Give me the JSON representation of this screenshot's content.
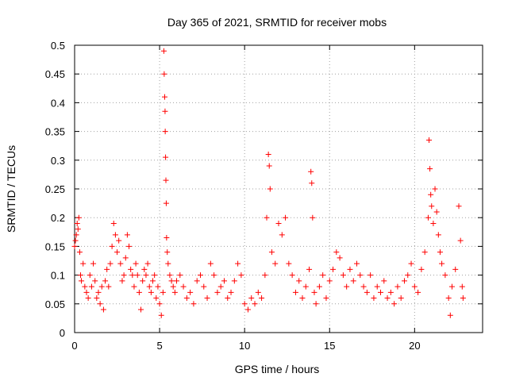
{
  "chart_data": {
    "type": "scatter",
    "title": "Day 365 of 2021, SRMTID for receiver mobs",
    "xlabel": "GPS time / hours",
    "ylabel": "SRMTID / TECUs",
    "xlim": [
      0,
      24
    ],
    "ylim": [
      0,
      0.5
    ],
    "xticks": [
      0,
      5,
      10,
      15,
      20
    ],
    "yticks": [
      0,
      0.05,
      0.1,
      0.15,
      0.2,
      0.25,
      0.3,
      0.35,
      0.4,
      0.45,
      0.5
    ],
    "xtick_labels": [
      "0",
      "5",
      "10",
      "15",
      "20"
    ],
    "ytick_labels": [
      "0",
      "0.05",
      "0.1",
      "0.15",
      "0.2",
      "0.25",
      "0.3",
      "0.35",
      "0.4",
      "0.45",
      "0.5"
    ],
    "grid": true,
    "marker": "+",
    "color": "#ff0000",
    "series": [
      {
        "name": "SRMTID",
        "points": [
          [
            0.0,
            0.15
          ],
          [
            0.05,
            0.16
          ],
          [
            0.1,
            0.17
          ],
          [
            0.15,
            0.19
          ],
          [
            0.2,
            0.18
          ],
          [
            0.25,
            0.2
          ],
          [
            0.3,
            0.14
          ],
          [
            0.35,
            0.1
          ],
          [
            0.4,
            0.09
          ],
          [
            0.5,
            0.12
          ],
          [
            0.6,
            0.08
          ],
          [
            0.7,
            0.07
          ],
          [
            0.8,
            0.06
          ],
          [
            0.9,
            0.1
          ],
          [
            1.0,
            0.08
          ],
          [
            1.1,
            0.12
          ],
          [
            1.2,
            0.09
          ],
          [
            1.3,
            0.06
          ],
          [
            1.4,
            0.07
          ],
          [
            1.5,
            0.05
          ],
          [
            1.6,
            0.08
          ],
          [
            1.7,
            0.04
          ],
          [
            1.8,
            0.09
          ],
          [
            1.9,
            0.11
          ],
          [
            2.0,
            0.08
          ],
          [
            2.1,
            0.12
          ],
          [
            2.2,
            0.15
          ],
          [
            2.3,
            0.19
          ],
          [
            2.4,
            0.17
          ],
          [
            2.5,
            0.14
          ],
          [
            2.6,
            0.16
          ],
          [
            2.7,
            0.12
          ],
          [
            2.8,
            0.09
          ],
          [
            2.9,
            0.1
          ],
          [
            3.0,
            0.13
          ],
          [
            3.1,
            0.17
          ],
          [
            3.2,
            0.15
          ],
          [
            3.3,
            0.11
          ],
          [
            3.4,
            0.1
          ],
          [
            3.5,
            0.08
          ],
          [
            3.6,
            0.12
          ],
          [
            3.7,
            0.1
          ],
          [
            3.8,
            0.07
          ],
          [
            3.9,
            0.04
          ],
          [
            4.0,
            0.09
          ],
          [
            4.1,
            0.11
          ],
          [
            4.2,
            0.1
          ],
          [
            4.3,
            0.12
          ],
          [
            4.4,
            0.08
          ],
          [
            4.5,
            0.07
          ],
          [
            4.6,
            0.09
          ],
          [
            4.7,
            0.1
          ],
          [
            4.8,
            0.06
          ],
          [
            4.9,
            0.08
          ],
          [
            5.0,
            0.05
          ],
          [
            5.1,
            0.03
          ],
          [
            5.2,
            0.07
          ],
          [
            5.25,
            0.49
          ],
          [
            5.27,
            0.45
          ],
          [
            5.3,
            0.41
          ],
          [
            5.32,
            0.385
          ],
          [
            5.33,
            0.35
          ],
          [
            5.35,
            0.305
          ],
          [
            5.37,
            0.265
          ],
          [
            5.39,
            0.225
          ],
          [
            5.41,
            0.165
          ],
          [
            5.45,
            0.14
          ],
          [
            5.5,
            0.12
          ],
          [
            5.6,
            0.1
          ],
          [
            5.7,
            0.09
          ],
          [
            5.8,
            0.08
          ],
          [
            5.9,
            0.07
          ],
          [
            6.0,
            0.09
          ],
          [
            6.2,
            0.1
          ],
          [
            6.4,
            0.08
          ],
          [
            6.6,
            0.06
          ],
          [
            6.8,
            0.07
          ],
          [
            7.0,
            0.05
          ],
          [
            7.2,
            0.09
          ],
          [
            7.4,
            0.1
          ],
          [
            7.6,
            0.08
          ],
          [
            7.8,
            0.06
          ],
          [
            8.0,
            0.12
          ],
          [
            8.2,
            0.1
          ],
          [
            8.4,
            0.07
          ],
          [
            8.6,
            0.08
          ],
          [
            8.8,
            0.09
          ],
          [
            9.0,
            0.06
          ],
          [
            9.2,
            0.07
          ],
          [
            9.4,
            0.09
          ],
          [
            9.6,
            0.12
          ],
          [
            9.8,
            0.1
          ],
          [
            10.0,
            0.05
          ],
          [
            10.2,
            0.04
          ],
          [
            10.4,
            0.06
          ],
          [
            10.6,
            0.05
          ],
          [
            10.8,
            0.07
          ],
          [
            11.0,
            0.06
          ],
          [
            11.2,
            0.1
          ],
          [
            11.3,
            0.2
          ],
          [
            11.4,
            0.31
          ],
          [
            11.45,
            0.29
          ],
          [
            11.5,
            0.25
          ],
          [
            11.6,
            0.14
          ],
          [
            11.8,
            0.12
          ],
          [
            12.0,
            0.19
          ],
          [
            12.2,
            0.17
          ],
          [
            12.4,
            0.2
          ],
          [
            12.6,
            0.12
          ],
          [
            12.8,
            0.1
          ],
          [
            13.0,
            0.07
          ],
          [
            13.2,
            0.09
          ],
          [
            13.4,
            0.06
          ],
          [
            13.6,
            0.08
          ],
          [
            13.8,
            0.11
          ],
          [
            13.9,
            0.28
          ],
          [
            13.95,
            0.26
          ],
          [
            14.0,
            0.2
          ],
          [
            14.1,
            0.07
          ],
          [
            14.2,
            0.05
          ],
          [
            14.4,
            0.08
          ],
          [
            14.6,
            0.1
          ],
          [
            14.8,
            0.06
          ],
          [
            15.0,
            0.09
          ],
          [
            15.2,
            0.11
          ],
          [
            15.4,
            0.14
          ],
          [
            15.6,
            0.13
          ],
          [
            15.8,
            0.1
          ],
          [
            16.0,
            0.08
          ],
          [
            16.2,
            0.11
          ],
          [
            16.4,
            0.09
          ],
          [
            16.6,
            0.12
          ],
          [
            16.8,
            0.1
          ],
          [
            17.0,
            0.08
          ],
          [
            17.2,
            0.07
          ],
          [
            17.4,
            0.1
          ],
          [
            17.6,
            0.06
          ],
          [
            17.8,
            0.08
          ],
          [
            18.0,
            0.07
          ],
          [
            18.2,
            0.09
          ],
          [
            18.4,
            0.06
          ],
          [
            18.6,
            0.07
          ],
          [
            18.8,
            0.05
          ],
          [
            19.0,
            0.08
          ],
          [
            19.2,
            0.06
          ],
          [
            19.4,
            0.09
          ],
          [
            19.6,
            0.1
          ],
          [
            19.8,
            0.12
          ],
          [
            20.0,
            0.08
          ],
          [
            20.2,
            0.07
          ],
          [
            20.4,
            0.11
          ],
          [
            20.6,
            0.14
          ],
          [
            20.8,
            0.2
          ],
          [
            20.85,
            0.335
          ],
          [
            20.9,
            0.285
          ],
          [
            20.95,
            0.24
          ],
          [
            21.0,
            0.22
          ],
          [
            21.1,
            0.19
          ],
          [
            21.2,
            0.25
          ],
          [
            21.3,
            0.21
          ],
          [
            21.4,
            0.17
          ],
          [
            21.5,
            0.14
          ],
          [
            21.6,
            0.12
          ],
          [
            21.8,
            0.1
          ],
          [
            22.0,
            0.06
          ],
          [
            22.1,
            0.03
          ],
          [
            22.2,
            0.08
          ],
          [
            22.4,
            0.11
          ],
          [
            22.6,
            0.22
          ],
          [
            22.7,
            0.16
          ],
          [
            22.8,
            0.08
          ],
          [
            22.85,
            0.06
          ]
        ]
      }
    ]
  }
}
